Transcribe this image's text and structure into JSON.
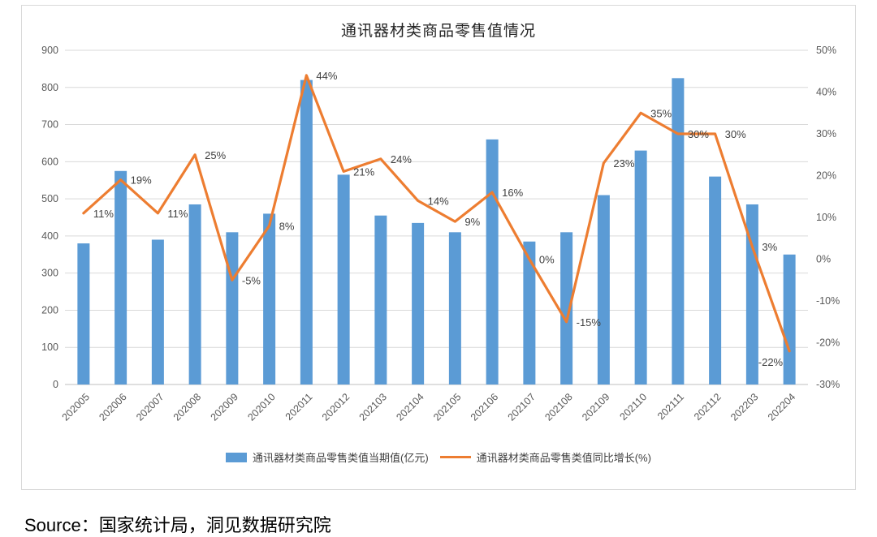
{
  "title": "通讯器材类商品零售值情况",
  "source": "Source：国家统计局，洞见数据研究院",
  "legend": {
    "bar": "通讯器材类商品零售类值当期值(亿元)",
    "line": "通讯器材类商品零售类值同比增长(%)"
  },
  "colors": {
    "bar": "#5B9BD5",
    "line": "#ED7D31",
    "grid": "#D9D9D9",
    "axis_line": "#BFBFBF",
    "axis_text": "#595959",
    "label_text": "#404040"
  },
  "chart_data": {
    "type": "bar",
    "subtype": "combo-bar-line",
    "title": "通讯器材类商品零售值情况",
    "categories": [
      "202005",
      "202006",
      "202007",
      "202008",
      "202009",
      "202010",
      "202011",
      "202012",
      "202103",
      "202104",
      "202105",
      "202106",
      "202107",
      "202108",
      "202109",
      "202110",
      "202111",
      "202112",
      "202203",
      "202204"
    ],
    "series": [
      {
        "name": "通讯器材类商品零售类值当期值(亿元)",
        "type": "bar",
        "axis": "left",
        "values": [
          380,
          575,
          390,
          485,
          410,
          460,
          820,
          565,
          455,
          435,
          410,
          660,
          385,
          410,
          510,
          630,
          825,
          560,
          485,
          350
        ]
      },
      {
        "name": "通讯器材类商品零售类值同比增长(%)",
        "type": "line",
        "axis": "right",
        "values": [
          11,
          19,
          11,
          25,
          -5,
          8,
          44,
          21,
          24,
          14,
          9,
          16,
          0,
          -15,
          23,
          35,
          30,
          30,
          3,
          -22
        ],
        "labels": [
          "11%",
          "19%",
          "11%",
          "25%",
          "-5%",
          "8%",
          "44%",
          "21%",
          "24%",
          "14%",
          "9%",
          "16%",
          "0%",
          "-15%",
          "23%",
          "35%",
          "30%",
          "30%",
          "3%",
          "-22%"
        ]
      }
    ],
    "left_axis": {
      "min": 0,
      "max": 900,
      "step": 100
    },
    "right_axis": {
      "min": -30,
      "max": 50,
      "step": 10,
      "suffix": "%"
    },
    "grid": true,
    "legend_position": "bottom"
  }
}
